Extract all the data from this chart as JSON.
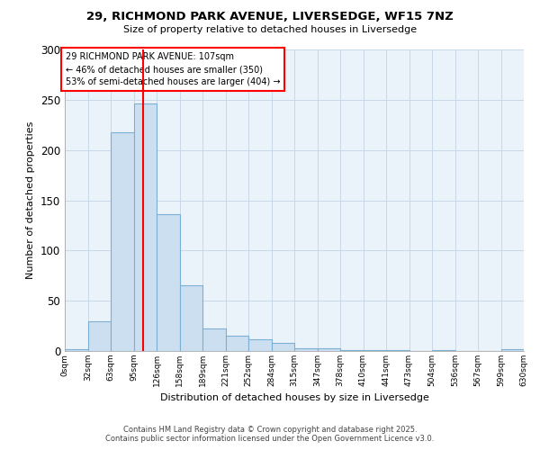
{
  "title_line1": "29, RICHMOND PARK AVENUE, LIVERSEDGE, WF15 7NZ",
  "title_line2": "Size of property relative to detached houses in Liversedge",
  "xlabel": "Distribution of detached houses by size in Liversedge",
  "ylabel": "Number of detached properties",
  "bin_edges": [
    0,
    31.5,
    63,
    94.5,
    126,
    157.5,
    189,
    220.5,
    252,
    283.5,
    315,
    346.5,
    378,
    409.5,
    441,
    472.5,
    504,
    535.5,
    567,
    598.5,
    630
  ],
  "bin_labels": [
    "0sqm",
    "32sqm",
    "63sqm",
    "95sqm",
    "126sqm",
    "158sqm",
    "189sqm",
    "221sqm",
    "252sqm",
    "284sqm",
    "315sqm",
    "347sqm",
    "378sqm",
    "410sqm",
    "441sqm",
    "473sqm",
    "504sqm",
    "536sqm",
    "567sqm",
    "599sqm",
    "630sqm"
  ],
  "bar_heights": [
    2,
    30,
    218,
    246,
    136,
    65,
    22,
    15,
    12,
    8,
    3,
    3,
    1,
    1,
    1,
    0,
    1,
    0,
    0,
    2
  ],
  "bar_color": "#ccdff0",
  "bar_edge_color": "#7bafd4",
  "grid_color": "#c8d8e8",
  "background_color": "#ffffff",
  "plot_bg_color": "#eaf2fa",
  "red_line_x": 107,
  "annotation_text": "29 RICHMOND PARK AVENUE: 107sqm\n← 46% of detached houses are smaller (350)\n53% of semi-detached houses are larger (404) →",
  "annotation_box_color": "white",
  "annotation_box_edge": "red",
  "ylim": [
    0,
    300
  ],
  "yticks": [
    0,
    50,
    100,
    150,
    200,
    250,
    300
  ],
  "footer_line1": "Contains HM Land Registry data © Crown copyright and database right 2025.",
  "footer_line2": "Contains public sector information licensed under the Open Government Licence v3.0."
}
